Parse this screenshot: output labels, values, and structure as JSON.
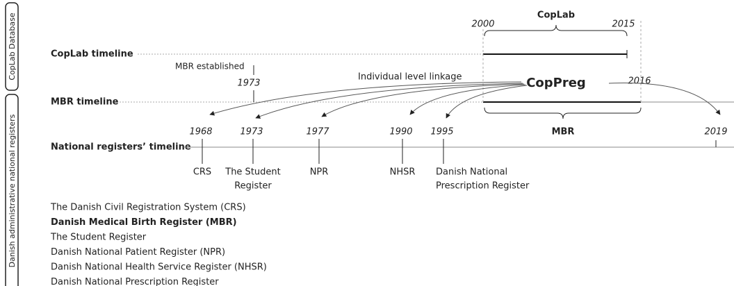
{
  "side_labels": [
    "CopLab Database",
    "Danish administrative national registers"
  ],
  "timelines": [
    "CopLab timeline",
    "MBR timeline",
    "National registers’ timeline"
  ],
  "coplab": {
    "title": "CopLab",
    "start": "2000",
    "end": "2015"
  },
  "mbr_established": {
    "label": "MBR established",
    "year": "1973"
  },
  "linkage": "Individual level linkage",
  "center": "CopPreg",
  "mbr": {
    "label": "MBR",
    "end": "2016"
  },
  "registers": [
    {
      "year": "1968",
      "label": [
        "CRS"
      ]
    },
    {
      "year": "1973",
      "label": [
        "The Student",
        "Register"
      ]
    },
    {
      "year": "1977",
      "label": [
        "NPR"
      ]
    },
    {
      "year": "1990",
      "label": [
        "NHSR"
      ]
    },
    {
      "year": "1995",
      "label": [
        "Danish National",
        "Prescription Register"
      ]
    }
  ],
  "future_year": "2019",
  "legend": [
    "The Danish Civil Registration System (CRS)",
    "Danish Medical Birth Register (MBR)",
    "The Student Register",
    "Danish National Patient Register (NPR)",
    "Danish National Health Service Register (NHSR)",
    "Danish National Prescription Register"
  ]
}
